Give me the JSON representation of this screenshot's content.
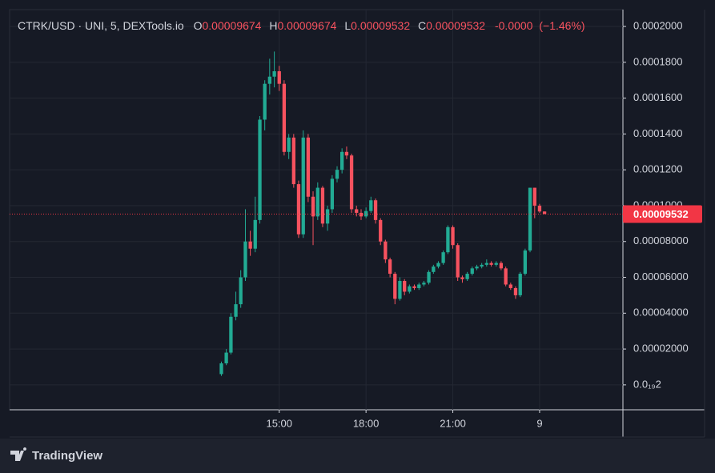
{
  "chart_data": {
    "type": "candlestick",
    "legend_text": {
      "symbol": "CTRK/USD · UNI, 5, DEXTools.io",
      "o_prefix": "O",
      "o": "0.00009674",
      "h_prefix": "H",
      "h": "0.00009674",
      "l_prefix": "L",
      "l": "0.00009532",
      "c_prefix": "C",
      "c": "0.00009532",
      "change": "-0.0000",
      "change_pct": "(−1.46%)"
    },
    "up_color": "#22ab94",
    "down_color": "#f7525f",
    "x": [
      13.0,
      13.17,
      13.33,
      13.5,
      13.67,
      13.83,
      14.0,
      14.17,
      14.33,
      14.5,
      14.67,
      14.83,
      15.0,
      15.17,
      15.33,
      15.5,
      15.67,
      15.83,
      16.0,
      16.17,
      16.33,
      16.5,
      16.67,
      16.83,
      17.0,
      17.17,
      17.33,
      17.5,
      17.67,
      17.83,
      18.0,
      18.17,
      18.33,
      18.5,
      18.67,
      18.83,
      19.0,
      19.17,
      19.33,
      19.5,
      19.67,
      19.83,
      20.0,
      20.17,
      20.33,
      20.5,
      20.67,
      20.83,
      21.0,
      21.17,
      21.33,
      21.5,
      21.67,
      21.83,
      22.0,
      22.17,
      22.33,
      22.5,
      22.67,
      22.83,
      23.0,
      23.17,
      23.33,
      23.5,
      23.67,
      23.83,
      24.0,
      24.17
    ],
    "open": [
      6e-06,
      1.2e-05,
      1.8e-05,
      3.8e-05,
      4.5e-05,
      6e-05,
      8e-05,
      7.6e-05,
      9.2e-05,
      0.000148,
      0.000168,
      0.000172,
      0.000175,
      0.000168,
      0.00013,
      0.000138,
      0.000112,
      8.4e-05,
      0.000138,
      0.000105,
      9.4e-05,
      0.00011,
      9e-05,
      9.8e-05,
      0.000115,
      0.00012,
      0.00013,
      0.000128,
      9.8e-05,
      9.6e-05,
      9.4e-05,
      9.7e-05,
      0.000103,
      9.2e-05,
      8e-05,
      7e-05,
      6.2e-05,
      4.8e-05,
      5.8e-05,
      5.2e-05,
      5.5e-05,
      5.4e-05,
      5.6e-05,
      5.7e-05,
      6.3e-05,
      6.6e-05,
      6.8e-05,
      7.4e-05,
      8.8e-05,
      7.8e-05,
      6e-05,
      5.9e-05,
      6.2e-05,
      6.5e-05,
      6.6e-05,
      6.7e-05,
      6.8e-05,
      6.7e-05,
      6.8e-05,
      6.5e-05,
      5.6e-05,
      5.4e-05,
      5e-05,
      6.2e-05,
      7.5e-05,
      0.00011,
      0.0001,
      9.674e-05
    ],
    "high": [
      1.3e-05,
      2e-05,
      4e-05,
      5.2e-05,
      6.4e-05,
      9.8e-05,
      8.6e-05,
      0.000105,
      0.00015,
      0.00017,
      0.000182,
      0.000186,
      0.000178,
      0.00017,
      0.00014,
      0.00014,
      0.000114,
      0.000142,
      0.00014,
      0.000108,
      0.000113,
      0.000111,
      0.0001,
      0.000117,
      0.000122,
      0.000132,
      0.000133,
      0.000129,
      0.0001,
      9.8e-05,
      9.9e-05,
      0.000105,
      0.000104,
      9.3e-05,
      8.1e-05,
      7.1e-05,
      6.3e-05,
      6e-05,
      5.9e-05,
      5.6e-05,
      5.6e-05,
      5.7e-05,
      5.8e-05,
      6.4e-05,
      6.7e-05,
      6.9e-05,
      7.5e-05,
      8.9e-05,
      8.9e-05,
      7.9e-05,
      6.1e-05,
      6.3e-05,
      6.6e-05,
      6.7e-05,
      6.8e-05,
      7e-05,
      6.9e-05,
      6.9e-05,
      6.9e-05,
      6.6e-05,
      5.7e-05,
      5.5e-05,
      6.3e-05,
      7.6e-05,
      0.00011,
      0.00011,
      0.000101,
      9.674e-05
    ],
    "low": [
      5e-06,
      1.1e-05,
      1.7e-05,
      3.6e-05,
      4.3e-05,
      5.8e-05,
      7.2e-05,
      7.4e-05,
      9e-05,
      0.000142,
      0.000162,
      0.000166,
      0.000164,
      0.000128,
      0.000126,
      0.00011,
      8.2e-05,
      8.2e-05,
      0.000102,
      7.8e-05,
      9.2e-05,
      8.8e-05,
      8.6e-05,
      9.6e-05,
      0.000113,
      0.000118,
      0.000126,
      9.6e-05,
      9.4e-05,
      9.2e-05,
      9.3e-05,
      9.6e-05,
      9e-05,
      7.8e-05,
      6.8e-05,
      6e-05,
      4.5e-05,
      4.7e-05,
      5e-05,
      5.1e-05,
      5.3e-05,
      5.3e-05,
      5.5e-05,
      5.6e-05,
      6.2e-05,
      6.5e-05,
      6.7e-05,
      7.3e-05,
      7.6e-05,
      5.8e-05,
      5.7e-05,
      5.8e-05,
      6.1e-05,
      6.4e-05,
      6.5e-05,
      6.6e-05,
      6.6e-05,
      6.6e-05,
      6.4e-05,
      5.5e-05,
      5.3e-05,
      4.8e-05,
      4.9e-05,
      6.1e-05,
      7.4e-05,
      9.3e-05,
      9.6e-05,
      9.532e-05
    ],
    "close": [
      1.2e-05,
      1.8e-05,
      3.8e-05,
      4.5e-05,
      6e-05,
      8e-05,
      7.6e-05,
      9.2e-05,
      0.000148,
      0.000168,
      0.000172,
      0.000175,
      0.000168,
      0.00013,
      0.000138,
      0.000112,
      8.4e-05,
      0.000138,
      0.000105,
      9.4e-05,
      0.00011,
      9e-05,
      9.8e-05,
      0.000115,
      0.00012,
      0.00013,
      0.000128,
      9.8e-05,
      9.6e-05,
      9.4e-05,
      9.7e-05,
      0.000103,
      9.2e-05,
      8e-05,
      7e-05,
      6.2e-05,
      4.8e-05,
      5.8e-05,
      5.2e-05,
      5.5e-05,
      5.4e-05,
      5.6e-05,
      5.7e-05,
      6.3e-05,
      6.6e-05,
      6.8e-05,
      7.4e-05,
      8.8e-05,
      7.8e-05,
      6e-05,
      5.9e-05,
      6.2e-05,
      6.5e-05,
      6.6e-05,
      6.7e-05,
      6.8e-05,
      6.7e-05,
      6.8e-05,
      6.5e-05,
      5.6e-05,
      5.4e-05,
      5e-05,
      6.2e-05,
      7.5e-05,
      0.00011,
      0.0001,
      9.674e-05,
      9.532e-05
    ],
    "xlim": [
      5.68,
      26.88
    ],
    "xticks": [
      {
        "value": 15,
        "label": "15:00"
      },
      {
        "value": 18,
        "label": "18:00"
      },
      {
        "value": 21,
        "label": "21:00"
      },
      {
        "value": 24,
        "label": "9"
      }
    ],
    "ylim": [
      -1.39e-05,
      0.0002094
    ],
    "yticks": [
      {
        "value": 2e-20,
        "label": "0.0₁₉2"
      },
      {
        "value": 2e-05,
        "label": "0.00002000"
      },
      {
        "value": 4e-05,
        "label": "0.00004000"
      },
      {
        "value": 6e-05,
        "label": "0.00006000"
      },
      {
        "value": 8e-05,
        "label": "0.00008000"
      },
      {
        "value": 0.0001,
        "label": "0.0001000"
      },
      {
        "value": 0.00012,
        "label": "0.0001200"
      },
      {
        "value": 0.00014,
        "label": "0.0001400"
      },
      {
        "value": 0.00016,
        "label": "0.0001600"
      },
      {
        "value": 0.00018,
        "label": "0.0001800"
      },
      {
        "value": 0.0002,
        "label": "0.0002000"
      }
    ],
    "grid": true,
    "last_price": {
      "value": 9.532e-05,
      "label": "0.00009532",
      "color": "#f23645"
    }
  },
  "branding": "TradingView"
}
